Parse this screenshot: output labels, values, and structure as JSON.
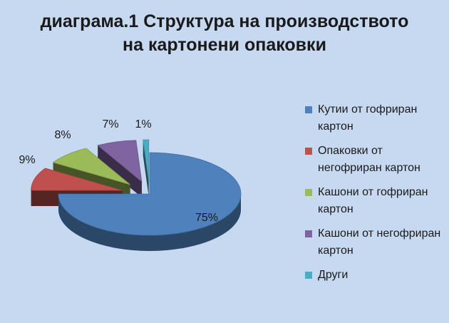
{
  "chart_data": {
    "type": "pie",
    "title_line1": "диаграма.1 Структура на производството",
    "title_line2": "на картонени опаковки",
    "slices": [
      {
        "label": "Кутии от гофриран картон",
        "value": 75,
        "value_label": "75%",
        "color": "#4f81bd"
      },
      {
        "label": "Опаковки от негофриран картон",
        "value": 9,
        "value_label": "9%",
        "color": "#c0504d"
      },
      {
        "label": "Кашони от гофриран картон",
        "value": 8,
        "value_label": "8%",
        "color": "#9bbb59"
      },
      {
        "label": "Кашони от негофриран картон",
        "value": 7,
        "value_label": "7%",
        "color": "#8064a2"
      },
      {
        "label": "Други",
        "value": 1,
        "value_label": "1%",
        "color": "#4bacc6"
      }
    ],
    "legend_position": "right",
    "style": "3d-exploded"
  }
}
